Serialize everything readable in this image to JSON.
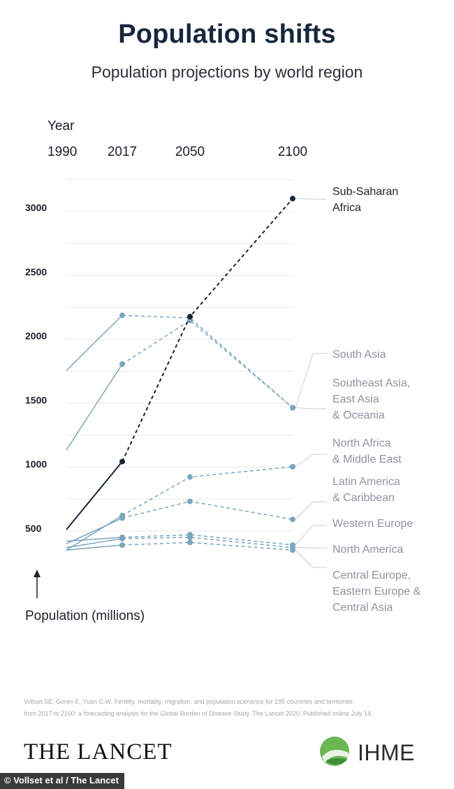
{
  "chart_data": {
    "type": "line",
    "title": "Population shifts",
    "subtitle": "Population projections by world region",
    "xlabel": "Year",
    "ylabel": "Population (millions)",
    "x": [
      1990,
      2017,
      2050,
      2100
    ],
    "yticks": [
      500,
      1000,
      1500,
      2000,
      2500,
      3000
    ],
    "ylim": [
      250,
      3150
    ],
    "grid": true,
    "series": [
      {
        "name": "Sub-Saharan Africa",
        "label": [
          "Sub-Saharan",
          "Africa"
        ],
        "color": "#17253a",
        "highlight": true,
        "values": [
          490,
          1020,
          2150,
          3070
        ]
      },
      {
        "name": "South Asia",
        "label": [
          "South Asia"
        ],
        "color": "#7aa5be",
        "values": [
          1110,
          1780,
          2120,
          1440
        ]
      },
      {
        "name": "Southeast Asia, East Asia & Oceania",
        "label": [
          "Southeast Asia,",
          "East Asia",
          "& Oceania"
        ],
        "color": "#7aa5be",
        "values": [
          1730,
          2160,
          2140,
          1440
        ]
      },
      {
        "name": "North Africa & Middle East",
        "label": [
          "North Africa",
          "& Middle East"
        ],
        "color": "#7aa5be",
        "values": [
          330,
          600,
          900,
          980
        ]
      },
      {
        "name": "Latin America & Caribbean",
        "label": [
          "Latin America",
          "& Caribbean"
        ],
        "color": "#7aa5be",
        "values": [
          380,
          580,
          710,
          570
        ]
      },
      {
        "name": "Western Europe",
        "label": [
          "Western Europe"
        ],
        "color": "#7aa5be",
        "values": [
          400,
          430,
          450,
          370
        ]
      },
      {
        "name": "North America",
        "label": [
          "North America"
        ],
        "color": "#7aa5be",
        "values": [
          350,
          420,
          430,
          350
        ]
      },
      {
        "name": "Central Europe, Eastern Europe & Central Asia",
        "label": [
          "Central Europe,",
          "Eastern Europe &",
          "Central Asia"
        ],
        "color": "#7aa5be",
        "values": [
          330,
          370,
          390,
          330
        ]
      }
    ]
  },
  "footer": {
    "citation_line1": "Vollset SE, Goren E, Yuan C-W. Fertility, mortality, migration, and population scenarios for 195 countries and territories",
    "citation_line2": "from 2017 to 2100: a forecasting analysis for the Global Burden of Disease Study. The Lancet 2020. Published online July 14.",
    "lancet_logo": "THE LANCET",
    "ihme_logo": "IHME",
    "credit": "© Vollset et al / The Lancet"
  },
  "colors": {
    "title": "#16263d",
    "highlight_series": "#17253a",
    "other_series": "#7aa5be",
    "grid": "#e6e8ea",
    "label_muted": "#8c949b",
    "ihme_green": "#5aa84a"
  }
}
